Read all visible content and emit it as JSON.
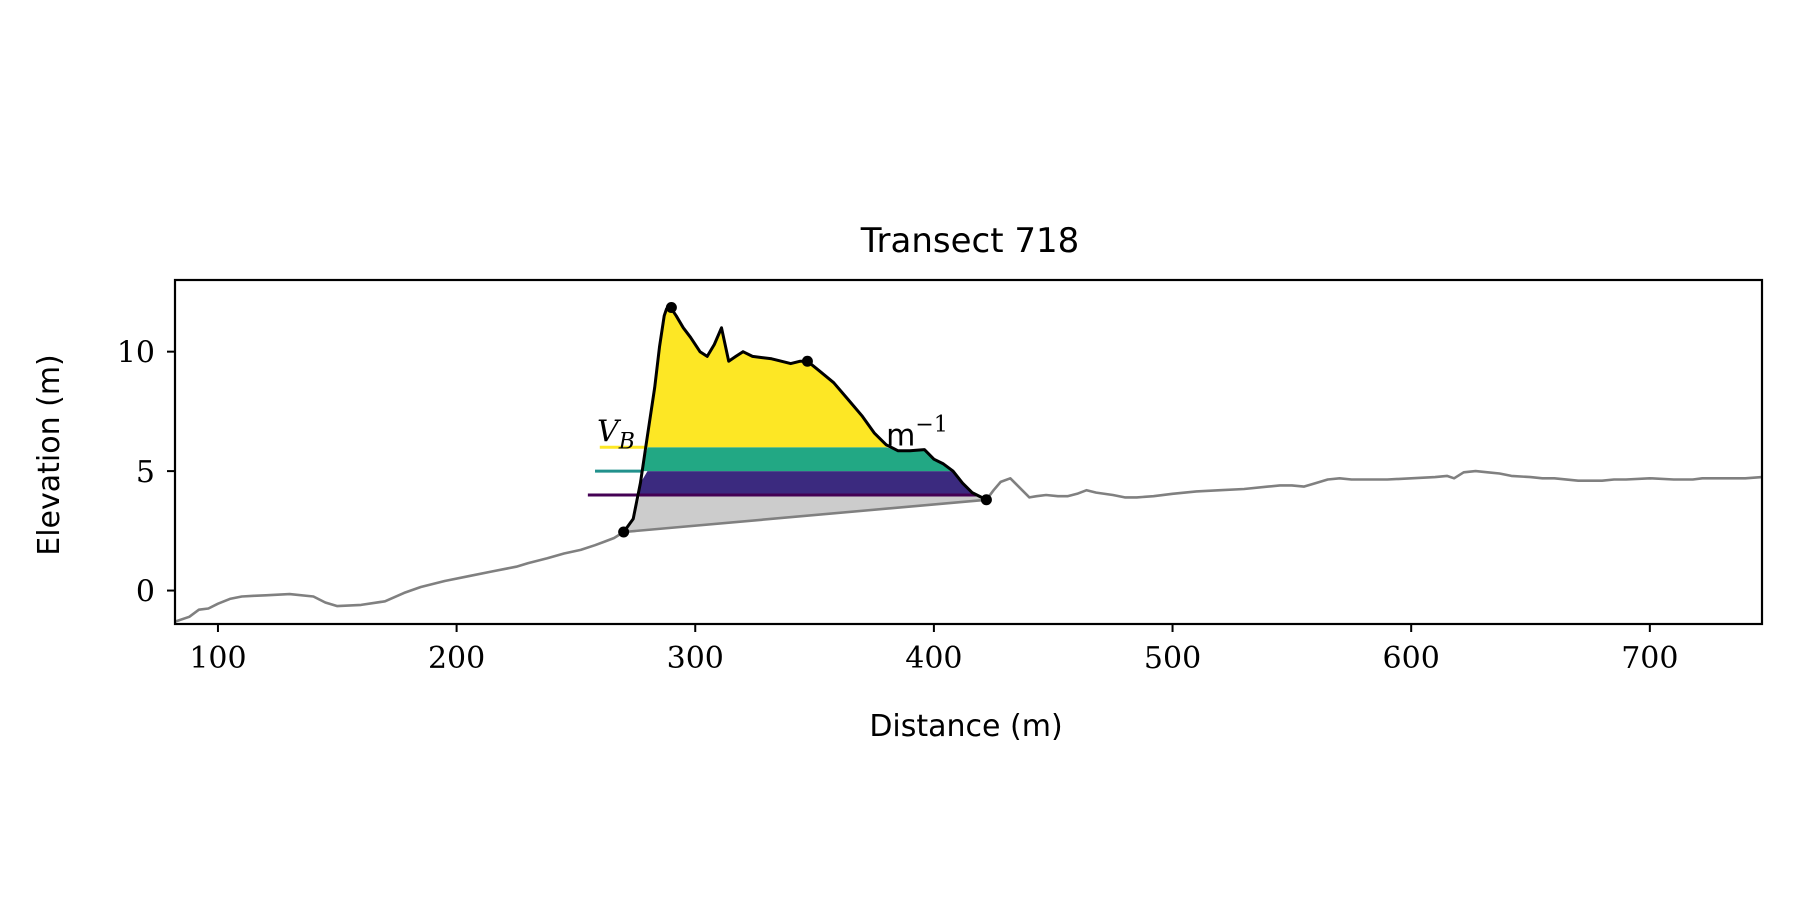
{
  "chart_data": {
    "type": "line",
    "title": "Transect 718",
    "xlabel": "Distance (m)",
    "ylabel": "Elevation (m)",
    "xlim": [
      82,
      747
    ],
    "ylim": [
      -1.4,
      13.0
    ],
    "xticks": [
      100,
      200,
      300,
      400,
      500,
      600,
      700
    ],
    "yticks": [
      0,
      5,
      10
    ],
    "grid": false,
    "legend": "none",
    "colors": {
      "profile": "#808080",
      "dune": "#000000",
      "base_fill": "#cccccc",
      "level_1": "#440154",
      "level_2": "#21918c",
      "level_3": "#fde725",
      "fill_level_1": "#3b2a7f",
      "fill_level_2": "#22a884",
      "fill_level_3": "#fde725"
    },
    "profile": {
      "x": [
        82,
        88,
        92,
        96,
        100,
        105,
        110,
        115,
        120,
        130,
        140,
        145,
        150,
        160,
        170,
        178,
        185,
        195,
        205,
        215,
        225,
        230,
        238,
        245,
        252,
        258,
        262,
        266,
        270,
        422,
        425,
        428,
        432,
        436,
        440,
        443,
        447,
        452,
        456,
        460,
        464,
        468,
        475,
        480,
        485,
        492,
        500,
        510,
        520,
        530,
        540,
        545,
        550,
        555,
        560,
        565,
        570,
        575,
        590,
        600,
        610,
        615,
        618,
        622,
        627,
        632,
        637,
        642,
        650,
        655,
        660,
        670,
        680,
        685,
        690,
        700,
        710,
        718,
        722,
        730,
        740,
        747
      ],
      "y": [
        -1.3,
        -1.1,
        -0.8,
        -0.75,
        -0.55,
        -0.35,
        -0.25,
        -0.22,
        -0.2,
        -0.15,
        -0.25,
        -0.5,
        -0.65,
        -0.6,
        -0.45,
        -0.1,
        0.15,
        0.4,
        0.6,
        0.8,
        1.0,
        1.15,
        1.35,
        1.55,
        1.7,
        1.9,
        2.05,
        2.2,
        2.45,
        3.8,
        4.2,
        4.55,
        4.7,
        4.3,
        3.9,
        3.95,
        4.0,
        3.95,
        3.95,
        4.05,
        4.2,
        4.1,
        4.0,
        3.9,
        3.9,
        3.95,
        4.05,
        4.15,
        4.2,
        4.25,
        4.35,
        4.4,
        4.4,
        4.35,
        4.5,
        4.65,
        4.7,
        4.65,
        4.65,
        4.7,
        4.75,
        4.8,
        4.7,
        4.95,
        5.0,
        4.95,
        4.9,
        4.8,
        4.75,
        4.7,
        4.7,
        4.6,
        4.6,
        4.65,
        4.65,
        4.7,
        4.65,
        4.65,
        4.7,
        4.7,
        4.7,
        4.75
      ]
    },
    "dune": {
      "x": [
        270,
        274,
        277,
        280,
        283,
        285,
        287,
        288,
        289,
        290,
        292,
        295,
        298,
        302,
        305,
        308,
        311,
        314,
        317,
        320,
        324,
        328,
        332,
        336,
        340,
        344,
        347,
        352,
        358,
        364,
        370,
        375,
        380,
        385,
        390,
        396,
        400,
        404,
        408,
        412,
        416,
        420,
        422
      ],
      "y": [
        2.45,
        3.0,
        4.5,
        6.5,
        8.5,
        10.2,
        11.5,
        11.8,
        11.85,
        11.8,
        11.5,
        11.0,
        10.6,
        10.0,
        9.8,
        10.3,
        11.0,
        9.6,
        9.8,
        10.0,
        9.8,
        9.75,
        9.7,
        9.6,
        9.5,
        9.6,
        9.6,
        9.2,
        8.7,
        8.0,
        7.3,
        6.6,
        6.1,
        5.85,
        5.85,
        5.9,
        5.5,
        5.3,
        5.0,
        4.5,
        4.1,
        3.9,
        3.8
      ]
    },
    "dune_points": {
      "x": [
        270,
        290,
        347,
        422
      ],
      "y": [
        2.45,
        11.85,
        9.6,
        3.8
      ]
    },
    "levels": [
      {
        "y": 4.0,
        "x_start": 255
      },
      {
        "y": 5.0,
        "x_start": 258
      },
      {
        "y": 6.0,
        "x_start": 260
      }
    ],
    "annotations": [
      {
        "text": "V_B",
        "x": 258,
        "y": 6.15
      },
      {
        "text": "m",
        "superscript": "−1",
        "x": 380,
        "y": 6.15
      }
    ]
  }
}
